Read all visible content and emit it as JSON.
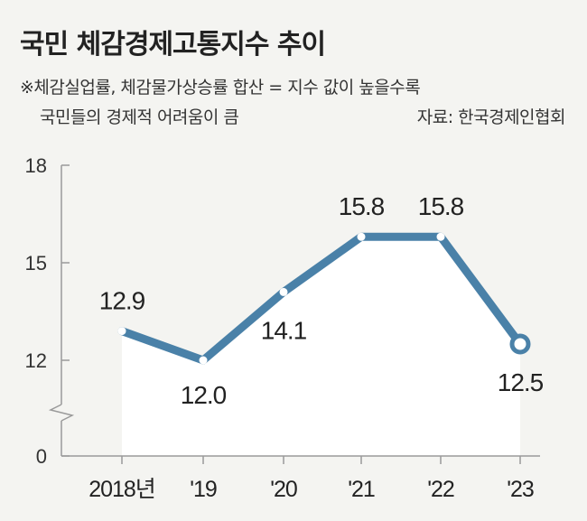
{
  "header": {
    "title": "국민 체감경제고통지수 추이",
    "note_line1": "※체감실업률, 체감물가상승률 합산 = 지수 값이 높을수록",
    "note_line2": "국민들의 경제적 어려움이 큼",
    "source": "자료: 한국경제인협회"
  },
  "chart_data": {
    "type": "line",
    "title": "국민 체감경제고통지수 추이",
    "categories": [
      "2018년",
      "'19",
      "'20",
      "'21",
      "'22",
      "'23"
    ],
    "values": [
      12.9,
      12.0,
      14.1,
      15.8,
      15.8,
      12.5
    ],
    "value_labels": [
      "12.9",
      "12.0",
      "14.1",
      "15.8",
      "15.8",
      "12.5"
    ],
    "y_ticks": [
      "18",
      "15",
      "12",
      "0"
    ],
    "y_tick_values": [
      18,
      15,
      12,
      0
    ],
    "ylim": [
      0,
      18
    ],
    "axis_break": true,
    "line_color": "#4a81a8",
    "xlabel": "",
    "ylabel": ""
  }
}
